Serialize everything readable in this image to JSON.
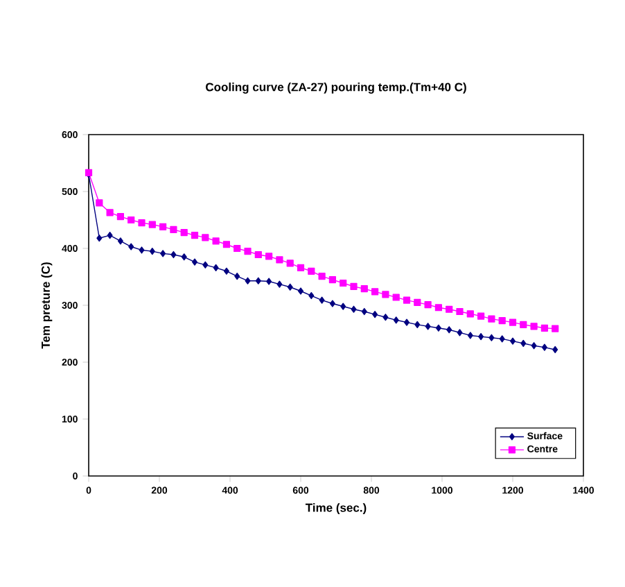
{
  "chart_data": {
    "type": "line",
    "title": "Cooling curve (ZA-27) pouring temp.(Tm+40 C)",
    "xlabel": "Time (sec.)",
    "ylabel": "Tem preture (C)",
    "x": [
      0,
      30,
      60,
      90,
      120,
      150,
      180,
      210,
      240,
      270,
      300,
      330,
      360,
      390,
      420,
      450,
      480,
      510,
      540,
      570,
      600,
      630,
      660,
      690,
      720,
      750,
      780,
      810,
      840,
      870,
      900,
      930,
      960,
      990,
      1020,
      1050,
      1080,
      1110,
      1140,
      1170,
      1200,
      1230,
      1260,
      1290,
      1320
    ],
    "series": [
      {
        "name": "Surface",
        "color": "#000080",
        "marker": "diamond",
        "values": [
          530,
          418,
          423,
          413,
          403,
          397,
          395,
          391,
          389,
          385,
          376,
          371,
          366,
          360,
          351,
          343,
          343,
          342,
          337,
          332,
          325,
          317,
          309,
          303,
          298,
          293,
          289,
          284,
          279,
          274,
          270,
          266,
          263,
          260,
          257,
          252,
          247,
          245,
          243,
          241,
          237,
          233,
          229,
          226,
          222
        ]
      },
      {
        "name": "Centre",
        "color": "#ff00ff",
        "marker": "square",
        "values": [
          533,
          480,
          463,
          456,
          450,
          445,
          442,
          438,
          433,
          428,
          423,
          419,
          413,
          407,
          400,
          395,
          389,
          386,
          380,
          374,
          366,
          360,
          351,
          345,
          339,
          333,
          329,
          324,
          319,
          314,
          309,
          305,
          301,
          296,
          293,
          289,
          285,
          281,
          276,
          273,
          270,
          266,
          263,
          260,
          259
        ]
      }
    ],
    "xlim": [
      0,
      1400
    ],
    "xticks": [
      0,
      200,
      400,
      600,
      800,
      1000,
      1200,
      1400
    ],
    "ylim": [
      0,
      600
    ],
    "yticks": [
      0,
      100,
      200,
      300,
      400,
      500,
      600
    ],
    "legend": "bottom right",
    "grid": false,
    "line_style": "solid"
  }
}
